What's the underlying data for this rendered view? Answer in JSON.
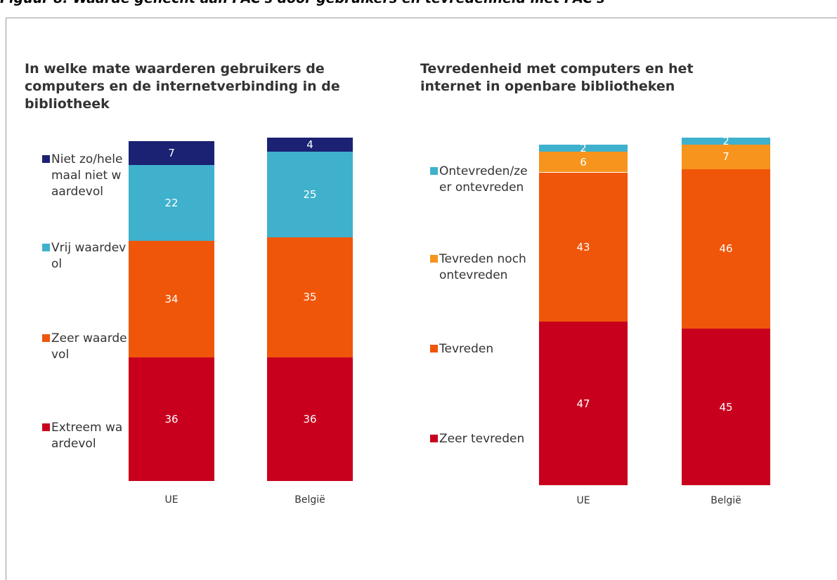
{
  "title": "Figuur 8: Waarde gehecht aan PAC's door gebruikers en tevredenheid met PAC's",
  "chart_data": [
    {
      "type": "bar",
      "stacked": true,
      "title": "In welke mate waarderen gebruikers de computers en de internetverbinding in de bibliotheek",
      "categories": [
        "UE",
        "België"
      ],
      "series": [
        {
          "name": "Extreem waardevol",
          "color": "#c8001e",
          "values": [
            36,
            36
          ]
        },
        {
          "name": "Zeer waardevol",
          "color": "#f0560a",
          "values": [
            34,
            35
          ]
        },
        {
          "name": "Vrij waardevol",
          "color": "#3fb1cc",
          "values": [
            22,
            25
          ]
        },
        {
          "name": "Niet zo/helemaal niet waardevol",
          "color": "#1b2273",
          "values": [
            7,
            4
          ]
        }
      ]
    },
    {
      "type": "bar",
      "stacked": true,
      "title": "Tevredenheid met computers en het internet in openbare bibliotheken",
      "categories": [
        "UE",
        "België"
      ],
      "series": [
        {
          "name": "Zeer tevreden",
          "color": "#c8001e",
          "values": [
            47,
            45
          ]
        },
        {
          "name": "Tevreden",
          "color": "#f0560a",
          "values": [
            43,
            46
          ]
        },
        {
          "name": "Tevreden noch ontevreden",
          "color": "#f7941d",
          "values": [
            6,
            7
          ]
        },
        {
          "name": "Ontevreden/zeer ontevreden",
          "color": "#3fb1cc",
          "values": [
            2,
            2
          ]
        }
      ]
    }
  ]
}
